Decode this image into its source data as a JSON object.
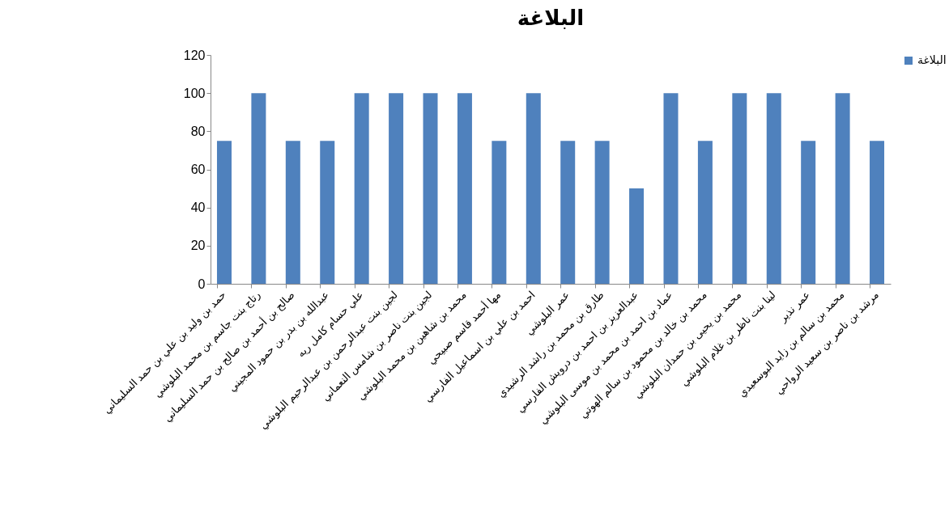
{
  "chart_data": {
    "type": "bar",
    "title": "البلاغة",
    "categories": [
      "حمد بن وليد بن علي بن حمد السليماني",
      "رتاج بنت جاسم بن محمد البلوشي",
      "صالح بن أحمد بن صالح بن حمد السليماني",
      "عبدالله بن بدر بن حمود المجيني",
      "علي حسام كامل ريه",
      "لجين بنت عبدالرحمن بن عبدالرحيم البلوشي",
      "لجين بنت ناصر بن شامس النعماني",
      "محمد بن شاهين بن محمد  البلوشي",
      "مها أحمد قاسم صبيحي",
      "احمد بن علي بن اسماعيل الفارسي",
      "عمر  البلوشي",
      "طارق بن محمد بن راشد الرشيدي",
      "عبدالعزيز بن احمد بن درويش الفارسي",
      "عماد بن احمد بن محمد بن موسى البلوشي",
      "محمد بن خالد بن محمود بن سالم الهوتي",
      "محمد بن يحيى بن حمدان البلوشي",
      "لينا بنت ناظر بن غلام البلوشي",
      "عمر نذير",
      "محمد بن سالم بن زايد البوسعيدي",
      "مرشد بن ناصر بن سعيد الرواحي"
    ],
    "series": [
      {
        "name": "البلاغة",
        "color": "#4f81bd",
        "values": [
          75,
          100,
          75,
          75,
          100,
          100,
          100,
          100,
          75,
          100,
          75,
          75,
          50,
          100,
          75,
          100,
          100,
          75,
          100,
          75
        ]
      }
    ],
    "ylim": [
      0,
      120
    ],
    "yticks": [
      0,
      20,
      40,
      60,
      80,
      100,
      120
    ],
    "legend": "right"
  }
}
